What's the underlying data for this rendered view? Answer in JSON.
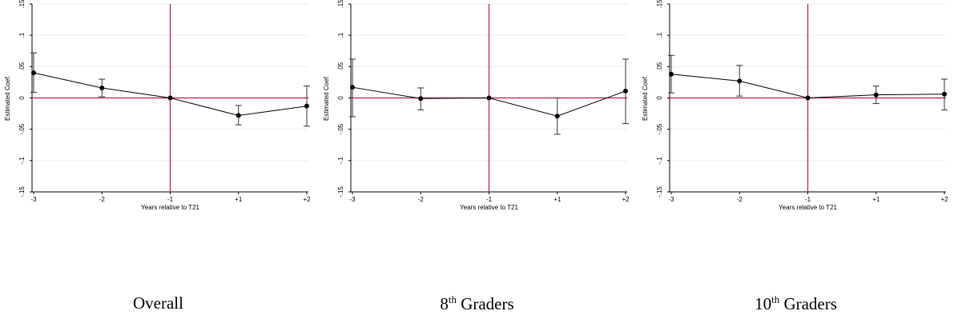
{
  "chart_data": [
    {
      "type": "line",
      "caption": {
        "main": "Overall",
        "sup": ""
      },
      "xlabel": "Years relative to T21",
      "ylabel": "Estimated Coef.",
      "categories": [
        "-3",
        "-2",
        "-1",
        "+1",
        "+2"
      ],
      "yticks": [
        ".15",
        ".1",
        ".05",
        "0",
        "-.05",
        "-.1",
        "-.15"
      ],
      "ylim": [
        -0.15,
        0.15
      ],
      "reference_lines": {
        "y": 0,
        "x": "-1",
        "color": "#b01a4b"
      },
      "grid": true,
      "series": [
        {
          "values": [
            0.04,
            0.016,
            0.0,
            -0.028,
            -0.013
          ],
          "ci_low": [
            0.009,
            0.002,
            0.0,
            -0.043,
            -0.045
          ],
          "ci_high": [
            0.072,
            0.03,
            0.0,
            -0.012,
            0.019
          ]
        }
      ]
    },
    {
      "type": "line",
      "caption": {
        "main": "8",
        "sup": "th",
        "rest": " Graders"
      },
      "xlabel": "Years relative to T21",
      "ylabel": "Estimated Coef.",
      "categories": [
        "-3",
        "-2",
        "-1",
        "+1",
        "+2"
      ],
      "yticks": [
        ".15",
        ".1",
        ".05",
        "0",
        "-.05",
        "-.1",
        "-.15"
      ],
      "ylim": [
        -0.15,
        0.15
      ],
      "reference_lines": {
        "y": 0,
        "x": "-1",
        "color": "#b01a4b"
      },
      "grid": true,
      "series": [
        {
          "values": [
            0.017,
            -0.001,
            0.0,
            -0.029,
            0.011
          ],
          "ci_low": [
            -0.03,
            -0.019,
            0.0,
            -0.058,
            -0.041
          ],
          "ci_high": [
            0.062,
            0.016,
            0.0,
            0.0,
            0.062
          ]
        }
      ]
    },
    {
      "type": "line",
      "caption": {
        "main": "10",
        "sup": "th",
        "rest": " Graders"
      },
      "xlabel": "Years relative to T21",
      "ylabel": "Estimated Coef.",
      "categories": [
        "-3",
        "-2",
        "-1",
        "+1",
        "+2"
      ],
      "yticks": [
        ".15",
        ".1",
        ".05",
        "0",
        "-.05",
        "-.1",
        "-.15"
      ],
      "ylim": [
        -0.15,
        0.15
      ],
      "reference_lines": {
        "y": 0,
        "x": "-1",
        "color": "#b01a4b"
      },
      "grid": true,
      "series": [
        {
          "values": [
            0.038,
            0.027,
            0.0,
            0.005,
            0.006
          ],
          "ci_low": [
            0.008,
            0.003,
            0.0,
            -0.009,
            -0.019
          ],
          "ci_high": [
            0.068,
            0.052,
            0.0,
            0.019,
            0.03
          ]
        }
      ]
    }
  ]
}
